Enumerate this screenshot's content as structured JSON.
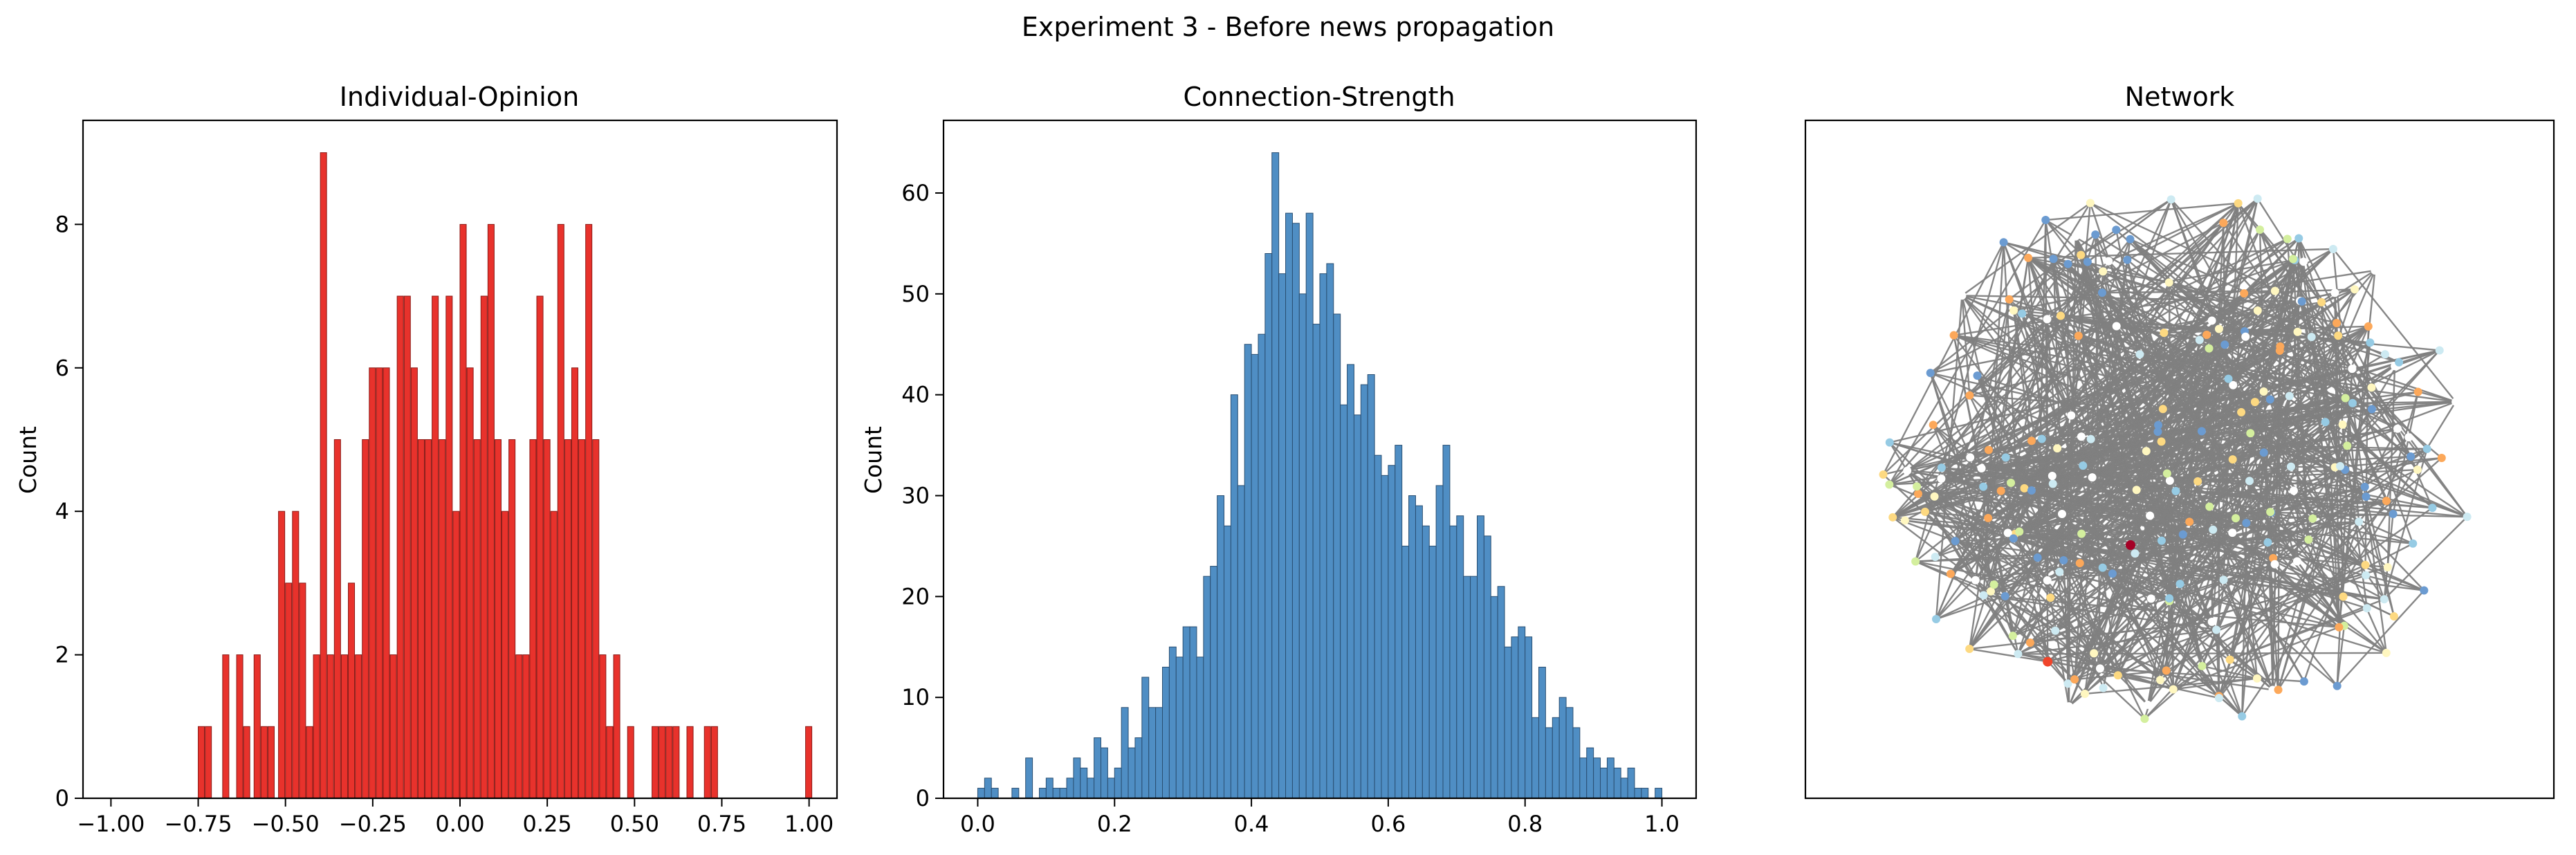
{
  "figure": {
    "title": "Experiment 3 - Before news propagation"
  },
  "chart_data": [
    {
      "type": "bar",
      "title": "Individual-Opinion",
      "xlabel": "",
      "ylabel": "Count",
      "xlim": [
        -1.08,
        1.08
      ],
      "ylim": [
        0,
        9.45
      ],
      "xticks": [
        -1.0,
        -0.75,
        -0.5,
        -0.25,
        0.0,
        0.25,
        0.5,
        0.75,
        1.0
      ],
      "xtick_labels": [
        "−1.00",
        "−0.75",
        "−0.50",
        "−0.25",
        "0.00",
        "0.25",
        "0.50",
        "0.75",
        "1.00"
      ],
      "yticks": [
        0,
        2,
        4,
        6,
        8
      ],
      "ytick_labels": [
        "0",
        "2",
        "4",
        "6",
        "8"
      ],
      "bin_width": 0.0179,
      "bins": [
        [
          -0.75,
          1
        ],
        [
          -0.73,
          1
        ],
        [
          -0.68,
          2
        ],
        [
          -0.64,
          2
        ],
        [
          -0.62,
          1
        ],
        [
          -0.59,
          2
        ],
        [
          -0.57,
          1
        ],
        [
          -0.55,
          1
        ],
        [
          -0.52,
          4
        ],
        [
          -0.5,
          3
        ],
        [
          -0.48,
          4
        ],
        [
          -0.46,
          3
        ],
        [
          -0.44,
          1
        ],
        [
          -0.42,
          2
        ],
        [
          -0.4,
          9
        ],
        [
          -0.38,
          2
        ],
        [
          -0.36,
          5
        ],
        [
          -0.34,
          2
        ],
        [
          -0.32,
          3
        ],
        [
          -0.3,
          2
        ],
        [
          -0.28,
          5
        ],
        [
          -0.26,
          6
        ],
        [
          -0.24,
          6
        ],
        [
          -0.22,
          6
        ],
        [
          -0.2,
          2
        ],
        [
          -0.18,
          7
        ],
        [
          -0.16,
          7
        ],
        [
          -0.14,
          6
        ],
        [
          -0.12,
          5
        ],
        [
          -0.1,
          5
        ],
        [
          -0.08,
          7
        ],
        [
          -0.06,
          5
        ],
        [
          -0.04,
          7
        ],
        [
          -0.02,
          4
        ],
        [
          0.0,
          8
        ],
        [
          0.02,
          6
        ],
        [
          0.04,
          5
        ],
        [
          0.06,
          7
        ],
        [
          0.08,
          8
        ],
        [
          0.1,
          5
        ],
        [
          0.12,
          4
        ],
        [
          0.14,
          5
        ],
        [
          0.16,
          2
        ],
        [
          0.18,
          2
        ],
        [
          0.2,
          5
        ],
        [
          0.22,
          7
        ],
        [
          0.24,
          5
        ],
        [
          0.26,
          4
        ],
        [
          0.28,
          8
        ],
        [
          0.3,
          5
        ],
        [
          0.32,
          6
        ],
        [
          0.34,
          5
        ],
        [
          0.36,
          8
        ],
        [
          0.38,
          5
        ],
        [
          0.4,
          2
        ],
        [
          0.42,
          1
        ],
        [
          0.44,
          2
        ],
        [
          0.48,
          1
        ],
        [
          0.55,
          1
        ],
        [
          0.57,
          1
        ],
        [
          0.59,
          1
        ],
        [
          0.61,
          1
        ],
        [
          0.65,
          1
        ],
        [
          0.7,
          1
        ],
        [
          0.72,
          1
        ],
        [
          0.99,
          1
        ]
      ],
      "color": "#e8322c"
    },
    {
      "type": "bar",
      "title": "Connection-Strength",
      "xlabel": "",
      "ylabel": "Count",
      "xlim": [
        -0.05,
        1.05
      ],
      "ylim": [
        0,
        67.2
      ],
      "xticks": [
        0.0,
        0.2,
        0.4,
        0.6,
        0.8,
        1.0
      ],
      "xtick_labels": [
        "0.0",
        "0.2",
        "0.4",
        "0.6",
        "0.8",
        "1.0"
      ],
      "yticks": [
        0,
        10,
        20,
        30,
        40,
        50,
        60
      ],
      "ytick_labels": [
        "0",
        "10",
        "20",
        "30",
        "40",
        "50",
        "60"
      ],
      "bin_start": 0.0,
      "bin_width": 0.01,
      "values": [
        1,
        2,
        1,
        0,
        0,
        1,
        0,
        4,
        0,
        1,
        2,
        1,
        1,
        2,
        4,
        3,
        2,
        6,
        5,
        2,
        3,
        9,
        5,
        6,
        12,
        9,
        9,
        13,
        15,
        14,
        17,
        17,
        14,
        22,
        23,
        30,
        27,
        40,
        31,
        45,
        44,
        46,
        54,
        64,
        52,
        58,
        57,
        50,
        58,
        47,
        52,
        53,
        48,
        39,
        43,
        38,
        41,
        42,
        34,
        32,
        33,
        35,
        25,
        30,
        29,
        27,
        25,
        31,
        35,
        27,
        28,
        22,
        22,
        28,
        26,
        20,
        21,
        15,
        16,
        17,
        16,
        8,
        13,
        7,
        8,
        10,
        9,
        7,
        4,
        5,
        4,
        3,
        4,
        3,
        2,
        3,
        1,
        1,
        0,
        1
      ],
      "color": "#4f8ec4"
    },
    {
      "type": "network",
      "title": "Network",
      "node_count": 245,
      "edge_color": "#808080",
      "node_colors": [
        "#fff7c0",
        "#fdd981",
        "#fca85a",
        "#96cbe4",
        "#cdeaf2",
        "#d4ef9e",
        "#6b9bd1",
        "#ffffff",
        "#f0452b",
        "#a50026"
      ]
    }
  ]
}
